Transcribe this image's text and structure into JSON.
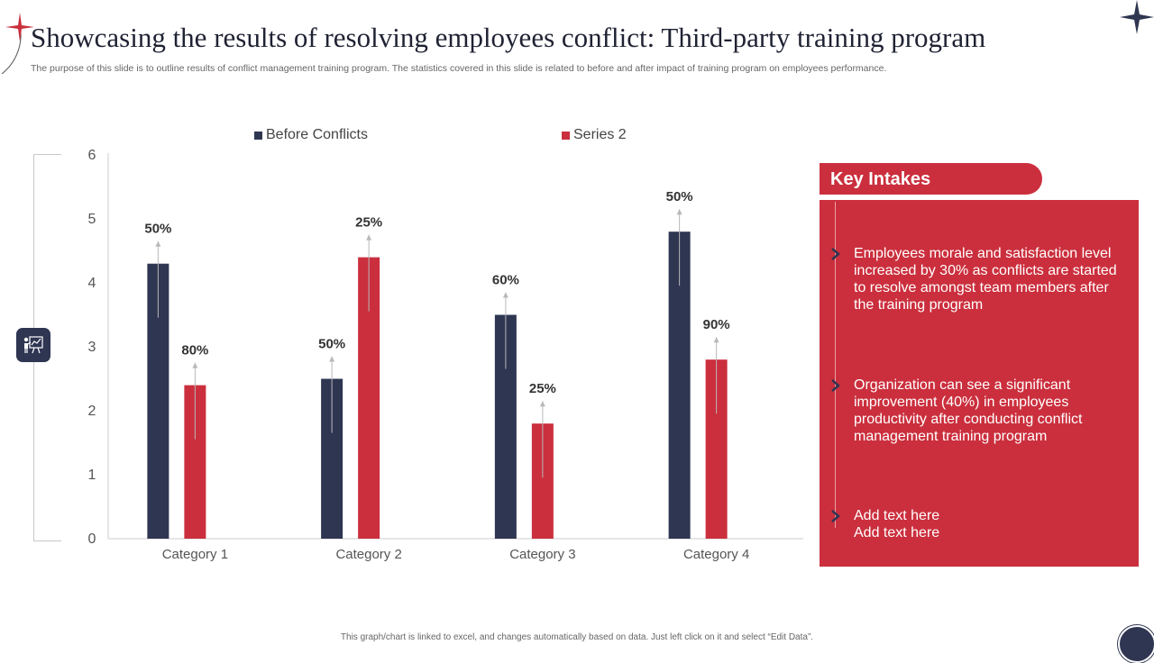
{
  "page": {
    "title": "Showcasing the results of resolving employees conflict: Third-party training program",
    "subtitle": "The purpose of this slide is to outline results of conflict management training program. The statistics covered in this slide is related to before and after impact of training program on employees performance.",
    "footer": "This graph/chart is linked to excel, and changes automatically based on data. Just left click on it and select “Edit Data”."
  },
  "colors": {
    "navy": "#2f3652",
    "red": "#cb2f3d"
  },
  "icons": {
    "badge": "chart-presentation-icon",
    "bullet": "chevron-right-icon",
    "decor": "four-point-star-icon"
  },
  "chart_data": {
    "type": "bar",
    "categories": [
      "Category 1",
      "Category 2",
      "Category 3",
      "Category 4"
    ],
    "series": [
      {
        "name": "Before Conflicts",
        "values": [
          4.3,
          2.5,
          3.5,
          4.8
        ],
        "labels": [
          "50%",
          "50%",
          "60%",
          "50%"
        ],
        "color": "#2f3652"
      },
      {
        "name": "Series 2",
        "values": [
          2.4,
          4.4,
          1.8,
          2.8
        ],
        "labels": [
          "80%",
          "25%",
          "25%",
          "90%"
        ],
        "color": "#cb2f3d"
      }
    ],
    "ylim": [
      0,
      6
    ],
    "yticks": [
      0,
      1,
      2,
      3,
      4,
      5,
      6
    ],
    "legend": "top",
    "grid": false
  },
  "key_intakes": {
    "title": "Key Intakes",
    "points": [
      "Employees morale and satisfaction level increased by 30% as conflicts are started to resolve amongst team members after the training program",
      "Organization can see a significant improvement (40%) in employees productivity after conducting conflict management training program",
      "Add text here\nAdd text here"
    ]
  }
}
